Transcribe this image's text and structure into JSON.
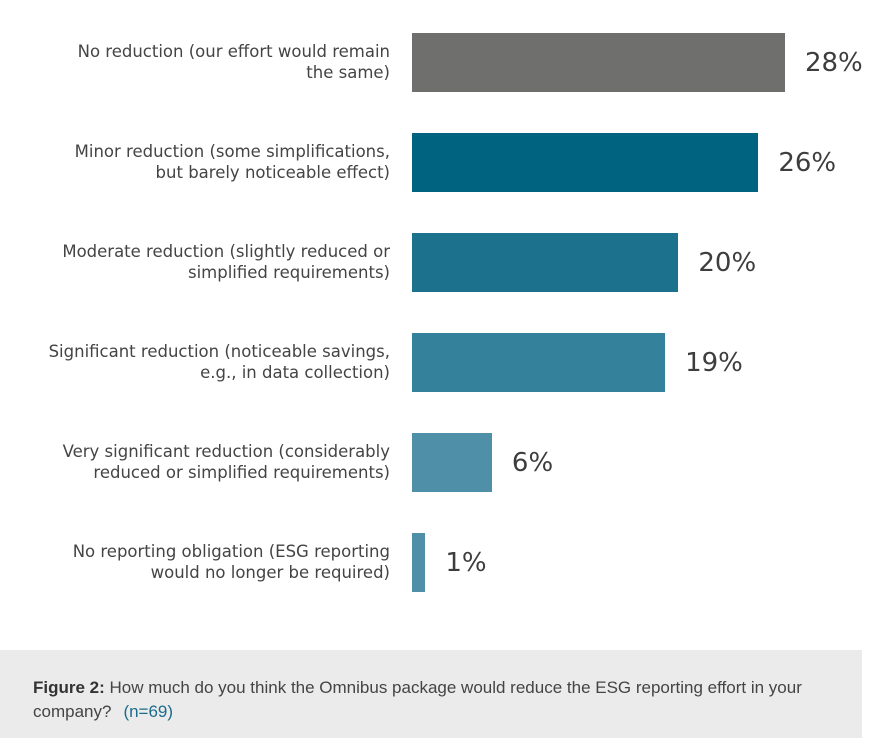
{
  "chart_data": {
    "type": "bar",
    "orientation": "horizontal",
    "title": "",
    "xlabel": "",
    "ylabel": "",
    "grid": false,
    "xlim": [
      0,
      28
    ],
    "categories": [
      "No reduction (our effort would remain the same)",
      "Minor reduction (some simplifications, but barely noticeable effect)",
      "Moderate reduction (slightly reduced or simplified requirements)",
      "Significant reduction (noticeable savings, e.g., in data collection)",
      "Very significant reduction (considerably reduced or simplified requirements)",
      "No reporting obligation (ESG reporting would no longer be required)"
    ],
    "category_lines": [
      [
        "No reduction (our effort would remain",
        "the same)"
      ],
      [
        "Minor reduction (some simplifications,",
        "but barely noticeable effect)"
      ],
      [
        "Moderate reduction (slightly reduced or",
        "simplified requirements)"
      ],
      [
        "Significant reduction (noticeable savings,",
        "e.g., in data collection)"
      ],
      [
        "Very significant reduction (considerably",
        "reduced or simplified requirements)"
      ],
      [
        "No reporting obligation (ESG reporting",
        "would no longer be required)"
      ]
    ],
    "values": [
      28,
      26,
      20,
      19,
      6,
      1
    ],
    "value_labels": [
      "28%",
      "26%",
      "20%",
      "19%",
      "6%",
      "1%"
    ],
    "unit": "%",
    "colors": [
      "#6f6f6e",
      "#006481",
      "#1c728d",
      "#33819a",
      "#4f90a8",
      "#4f90a8"
    ]
  },
  "caption": {
    "figure_label": "Figure 2:",
    "text": " How much do you think the Omnibus package would reduce the ESG reporting effort in your company?",
    "sample": "(n=69)"
  }
}
